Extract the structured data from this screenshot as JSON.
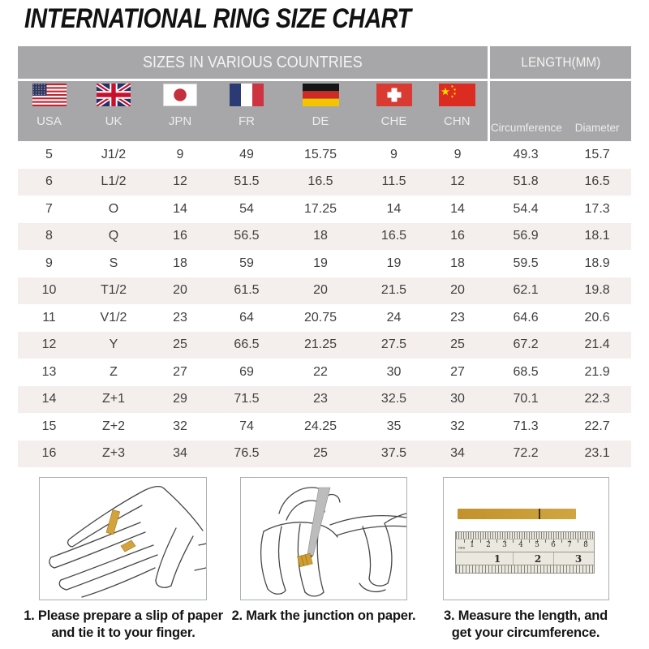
{
  "page_title": "INTERNATIONAL RING SIZE CHART",
  "size_chart": {
    "countries_header": "SIZES IN VARIOUS COUNTRIES",
    "length_header": "LENGTH(MM)",
    "country_columns": [
      {
        "code": "USA",
        "flag": "usa-flag"
      },
      {
        "code": "UK",
        "flag": "uk-flag"
      },
      {
        "code": "JPN",
        "flag": "japan-flag"
      },
      {
        "code": "FR",
        "flag": "france-flag"
      },
      {
        "code": "DE",
        "flag": "germany-flag"
      },
      {
        "code": "CHE",
        "flag": "switzerland-flag"
      },
      {
        "code": "CHN",
        "flag": "china-flag"
      }
    ],
    "length_columns": {
      "circumference": "Circumference",
      "diameter": "Diameter"
    },
    "rows": [
      [
        "5",
        "J1/2",
        "9",
        "49",
        "15.75",
        "9",
        "9",
        "49.3",
        "15.7"
      ],
      [
        "6",
        "L1/2",
        "12",
        "51.5",
        "16.5",
        "11.5",
        "12",
        "51.8",
        "16.5"
      ],
      [
        "7",
        "O",
        "14",
        "54",
        "17.25",
        "14",
        "14",
        "54.4",
        "17.3"
      ],
      [
        "8",
        "Q",
        "16",
        "56.5",
        "18",
        "16.5",
        "16",
        "56.9",
        "18.1"
      ],
      [
        "9",
        "S",
        "18",
        "59",
        "19",
        "19",
        "18",
        "59.5",
        "18.9"
      ],
      [
        "10",
        "T1/2",
        "20",
        "61.5",
        "20",
        "21.5",
        "20",
        "62.1",
        "19.8"
      ],
      [
        "11",
        "V1/2",
        "23",
        "64",
        "20.75",
        "24",
        "23",
        "64.6",
        "20.6"
      ],
      [
        "12",
        "Y",
        "25",
        "66.5",
        "21.25",
        "27.5",
        "25",
        "67.2",
        "21.4"
      ],
      [
        "13",
        "Z",
        "27",
        "69",
        "22",
        "30",
        "27",
        "68.5",
        "21.9"
      ],
      [
        "14",
        "Z+1",
        "29",
        "71.5",
        "23",
        "32.5",
        "30",
        "70.1",
        "22.3"
      ],
      [
        "15",
        "Z+2",
        "32",
        "74",
        "24.25",
        "35",
        "32",
        "71.3",
        "22.7"
      ],
      [
        "16",
        "Z+3",
        "34",
        "76.5",
        "25",
        "37.5",
        "34",
        "72.2",
        "23.1"
      ]
    ]
  },
  "instructions": [
    {
      "illustration": "hand-with-paper-strip",
      "lines": [
        "1. Please prepare a slip of paper",
        "and tie it to your finger."
      ]
    },
    {
      "illustration": "pen-marking-junction",
      "lines": [
        "2. Mark the junction on paper."
      ]
    },
    {
      "illustration": "ruler-measuring-strip",
      "lines": [
        "3. Measure the length, and",
        "get your circumference."
      ]
    }
  ],
  "ruler": {
    "top_unit": "mm",
    "top_scale": [
      "1",
      "2",
      "3",
      "4",
      "5",
      "6",
      "7",
      "8"
    ],
    "bottom_scale": [
      "1",
      "2",
      "3"
    ]
  },
  "colors": {
    "header_gray": "#a7a7a9",
    "row_stripe": "#f4efec",
    "data_text": "#3f3f3f",
    "header_text": "#f4f4f4",
    "paper_gold": "#cf9f33",
    "title_black": "#121212"
  }
}
